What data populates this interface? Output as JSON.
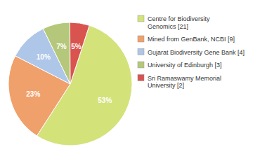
{
  "chart_data": {
    "type": "pie",
    "categories": [
      "Centre for Biodiversity\nGenomics [21]",
      "Mined from GenBank, NCBI [9]",
      "Gujarat Biodiversity Gene Bank [4]",
      "University of Edinburgh [3]",
      "Sri Ramaswamy Memorial\nUniversity [2]"
    ],
    "values": [
      53,
      23,
      10,
      7,
      5
    ],
    "value_labels": [
      "53%",
      "23%",
      "10%",
      "7%",
      "5%"
    ],
    "colors": [
      "#d4e27a",
      "#f0a06a",
      "#aec6e8",
      "#b5c77a",
      "#d9534f"
    ],
    "data_labels": true,
    "legend": "right"
  }
}
